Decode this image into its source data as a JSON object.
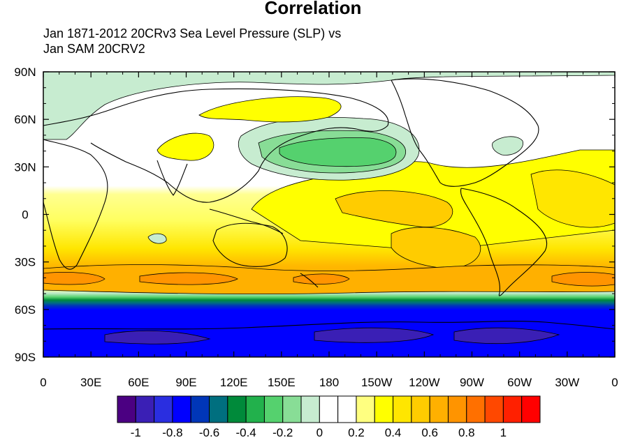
{
  "title": "Correlation",
  "subtitle_lines": [
    "Jan 1871-2012 20CRv3 Sea Level Pressure (SLP) vs",
    "Jan SAM 20CRV2"
  ],
  "map": {
    "projection": "cylindrical equidistant",
    "lat_range": [
      -90,
      90
    ],
    "lon_range": [
      0,
      360
    ],
    "lat_tick_labels": [
      "90N",
      "60N",
      "30N",
      "0",
      "30S",
      "60S",
      "90S"
    ],
    "lon_tick_labels": [
      "0",
      "30E",
      "60E",
      "90E",
      "120E",
      "150E",
      "180",
      "150W",
      "120W",
      "90W",
      "60W",
      "30W",
      "0"
    ]
  },
  "colorbar": {
    "colors": [
      "#4b0082",
      "#3a1fb5",
      "#2a2ee0",
      "#0000ff",
      "#0036b8",
      "#006f7f",
      "#008a3a",
      "#22b14c",
      "#55d16e",
      "#88dd96",
      "#c7ecd0",
      "#ffffff",
      "#ffffff",
      "#ffff80",
      "#ffff00",
      "#ffe600",
      "#ffcc00",
      "#ffb000",
      "#ff9400",
      "#ff7000",
      "#ff4800",
      "#ff2000",
      "#ff0000"
    ],
    "tick_labels": [
      "-1",
      "-0.8",
      "-0.6",
      "-0.4",
      "-0.2",
      "0",
      "0.2",
      "0.4",
      "0.6",
      "0.8",
      "1"
    ]
  }
}
